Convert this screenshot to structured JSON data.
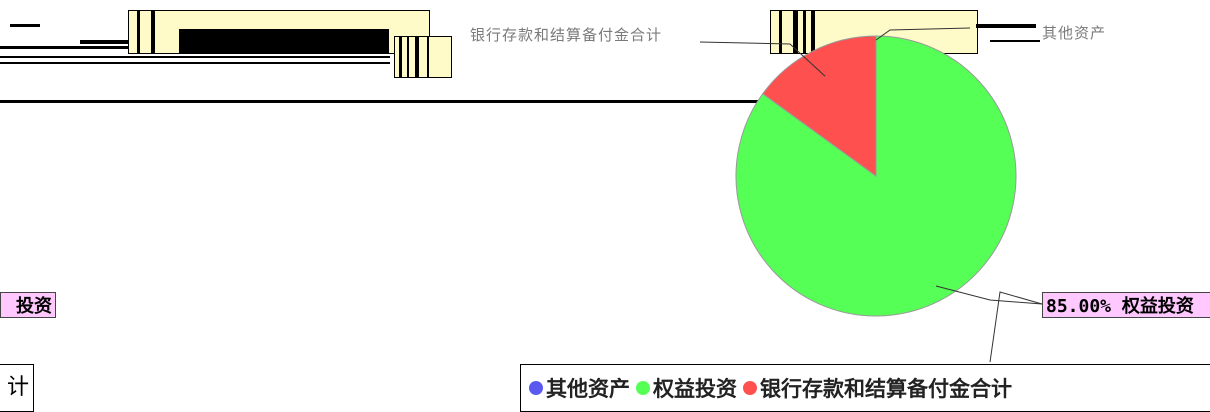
{
  "chart_data": {
    "type": "pie",
    "slices": [
      {
        "name": "其他资产",
        "value": 0.0,
        "color": "#5a5af0"
      },
      {
        "name": "权益投资",
        "value": 85.0,
        "color": "#55ff55"
      },
      {
        "name": "银行存款和结算备付金合计",
        "value": 15.0,
        "color": "#ff5050"
      }
    ],
    "legend": {
      "placement": "bottom-right",
      "items": [
        "其他资产",
        "权益投资",
        "银行存款和结算备付金合计"
      ]
    },
    "labels": {
      "equity": "85.00% 权益投资",
      "equity_left_fragment": "投资",
      "bank_left_fragment": "计",
      "bank_top_fragment": "银行存款和结算备付金合计",
      "other_top_fragment": "其他资产"
    }
  }
}
